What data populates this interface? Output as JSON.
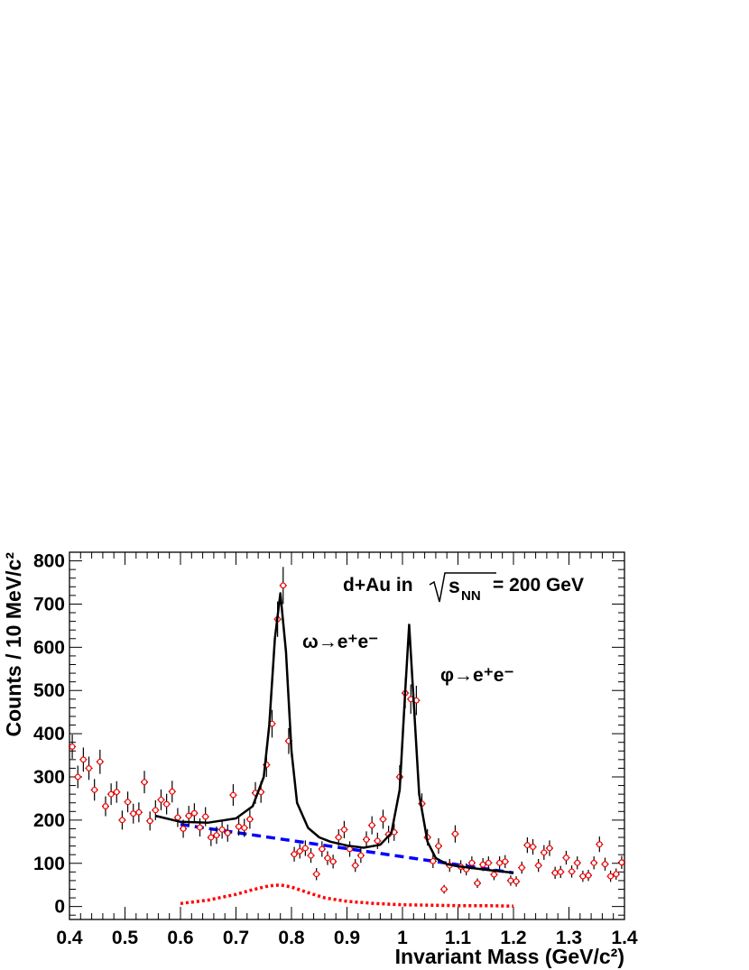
{
  "chart_data": {
    "type": "scatter",
    "title": "",
    "xlabel": "Invariant Mass (GeV/c²)",
    "ylabel": "Counts / 10 MeV/c²",
    "xlim": [
      0.4,
      1.4
    ],
    "ylim": [
      -30,
      820
    ],
    "x_ticks": [
      "0.4",
      "0.5",
      "0.6",
      "0.7",
      "0.8",
      "0.9",
      "1",
      "1.1",
      "1.2",
      "1.3",
      "1.4"
    ],
    "y_ticks": [
      "0",
      "100",
      "200",
      "300",
      "400",
      "500",
      "600",
      "700",
      "800"
    ],
    "grid": false,
    "annotations": {
      "system": "d+Au in √s_NN = 200 GeV",
      "system_prefix": "d+Au in",
      "system_s": "s",
      "system_sub": "NN",
      "system_suffix": "= 200 GeV",
      "omega": "ω→e⁺e⁻",
      "phi": "φ→e⁺e⁻"
    },
    "colors": {
      "data_marker": "#ff0000",
      "total_fit": "#000000",
      "background_fit": "#0000ff",
      "rho_contribution": "#ff0000"
    },
    "series": [
      {
        "style": "points-with-errors",
        "x": [
          0.405,
          0.415,
          0.425,
          0.435,
          0.445,
          0.455,
          0.465,
          0.475,
          0.485,
          0.495,
          0.505,
          0.515,
          0.525,
          0.535,
          0.545,
          0.555,
          0.565,
          0.575,
          0.585,
          0.595,
          0.605,
          0.615,
          0.625,
          0.635,
          0.645,
          0.655,
          0.665,
          0.675,
          0.685,
          0.695,
          0.705,
          0.715,
          0.725,
          0.735,
          0.745,
          0.755,
          0.765,
          0.775,
          0.785,
          0.795,
          0.805,
          0.815,
          0.825,
          0.835,
          0.845,
          0.855,
          0.865,
          0.875,
          0.885,
          0.895,
          0.905,
          0.915,
          0.925,
          0.935,
          0.945,
          0.955,
          0.965,
          0.975,
          0.985,
          0.995,
          1.005,
          1.015,
          1.025,
          1.035,
          1.045,
          1.055,
          1.065,
          1.075,
          1.085,
          1.095,
          1.105,
          1.115,
          1.125,
          1.135,
          1.145,
          1.155,
          1.165,
          1.175,
          1.185,
          1.195,
          1.205,
          1.215,
          1.225,
          1.235,
          1.245,
          1.255,
          1.265,
          1.275,
          1.285,
          1.295,
          1.305,
          1.315,
          1.325,
          1.335,
          1.345,
          1.355,
          1.365,
          1.375,
          1.385,
          1.395
        ],
        "y": [
          370,
          300,
          340,
          320,
          270,
          335,
          232,
          260,
          265,
          200,
          242,
          215,
          218,
          288,
          198,
          223,
          247,
          237,
          266,
          206,
          180,
          210,
          216,
          183,
          208,
          160,
          165,
          178,
          170,
          258,
          185,
          182,
          202,
          263,
          265,
          328,
          423,
          665,
          743,
          383,
          121,
          128,
          135,
          118,
          75,
          133,
          112,
          104,
          160,
          178,
          133,
          95,
          118,
          155,
          188,
          152,
          202,
          167,
          172,
          300,
          494,
          480,
          477,
          238,
          160,
          105,
          140,
          40,
          95,
          168,
          92,
          86,
          101,
          54,
          97,
          101,
          74,
          101,
          104,
          60,
          58,
          90,
          142,
          138,
          95,
          125,
          135,
          78,
          80,
          113,
          81,
          101,
          70,
          72,
          101,
          144,
          98,
          70,
          75,
          102
        ],
        "yerr": [
          28,
          26,
          28,
          27,
          25,
          28,
          23,
          25,
          25,
          22,
          24,
          23,
          23,
          26,
          22,
          23,
          24,
          24,
          25,
          22,
          21,
          23,
          23,
          21,
          22,
          20,
          20,
          21,
          20,
          25,
          21,
          21,
          22,
          25,
          25,
          28,
          32,
          41,
          43,
          30,
          17,
          17,
          18,
          17,
          14,
          18,
          16,
          16,
          19,
          20,
          18,
          15,
          17,
          19,
          21,
          19,
          22,
          20,
          20,
          27,
          35,
          34,
          34,
          24,
          19,
          16,
          18,
          10,
          15,
          20,
          15,
          14,
          15,
          11,
          15,
          15,
          13,
          15,
          15,
          12,
          12,
          14,
          18,
          18,
          15,
          17,
          18,
          14,
          14,
          16,
          14,
          15,
          13,
          13,
          15,
          18,
          15,
          13,
          13,
          15
        ]
      },
      {
        "style": "solid-line",
        "x": [
          0.555,
          0.6,
          0.65,
          0.7,
          0.73,
          0.75,
          0.76,
          0.77,
          0.78,
          0.79,
          0.8,
          0.81,
          0.83,
          0.85,
          0.87,
          0.9,
          0.93,
          0.96,
          0.98,
          0.995,
          1.005,
          1.012,
          1.019,
          1.03,
          1.045,
          1.06,
          1.08,
          1.1,
          1.15,
          1.2
        ],
        "y": [
          210,
          196,
          194,
          204,
          232,
          300,
          420,
          620,
          725,
          590,
          360,
          240,
          182,
          160,
          150,
          141,
          136,
          143,
          170,
          270,
          500,
          652,
          500,
          260,
          150,
          112,
          98,
          93,
          85,
          78
        ]
      },
      {
        "style": "dashed-line",
        "x": [
          0.6,
          1.2
        ],
        "y": [
          190,
          78
        ]
      },
      {
        "style": "dotted-line",
        "x": [
          0.6,
          0.65,
          0.7,
          0.73,
          0.76,
          0.78,
          0.8,
          0.83,
          0.86,
          0.9,
          0.95,
          1.0,
          1.05,
          1.1,
          1.15,
          1.2
        ],
        "y": [
          7,
          15,
          28,
          39,
          48,
          50,
          45,
          32,
          20,
          12,
          7,
          4,
          3,
          2,
          2,
          1
        ]
      }
    ]
  }
}
